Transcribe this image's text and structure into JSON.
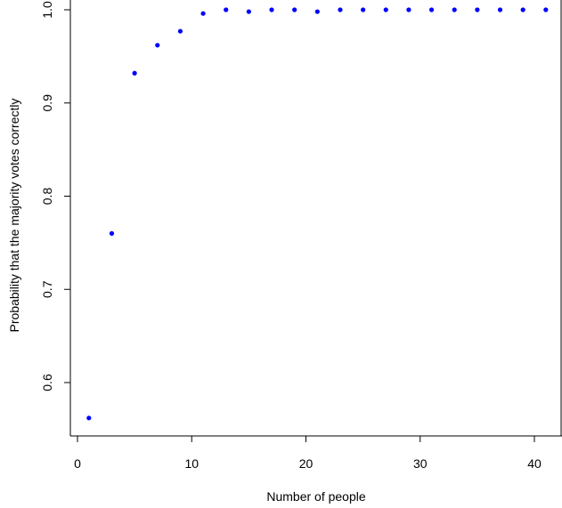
{
  "chart_data": {
    "type": "scatter",
    "title": "",
    "xlabel": "Number of people",
    "ylabel": "Probability that the majority votes correctly",
    "xlim": [
      0,
      42
    ],
    "ylim": [
      0.55,
      1.0
    ],
    "x_ticks": [
      0,
      10,
      20,
      30,
      40
    ],
    "y_ticks": [
      0.6,
      0.7,
      0.8,
      0.9,
      1.0
    ],
    "x_tick_labels": [
      "0",
      "10",
      "20",
      "30",
      "40"
    ],
    "y_tick_labels": [
      "0.6",
      "0.7",
      "0.8",
      "0.9",
      "1.0"
    ],
    "grid": false,
    "point_color": "#0000ff",
    "series": [
      {
        "x": [
          1,
          3,
          5,
          7,
          9,
          11,
          13,
          15,
          17,
          19,
          21,
          23,
          25,
          27,
          29,
          31,
          33,
          35,
          37,
          39,
          41
        ],
        "y": [
          0.562,
          0.76,
          0.932,
          0.962,
          0.977,
          0.996,
          1.0,
          0.998,
          1.0,
          1.0,
          0.998,
          1.0,
          1.0,
          1.0,
          1.0,
          1.0,
          1.0,
          1.0,
          1.0,
          1.0,
          1.0
        ]
      }
    ]
  }
}
